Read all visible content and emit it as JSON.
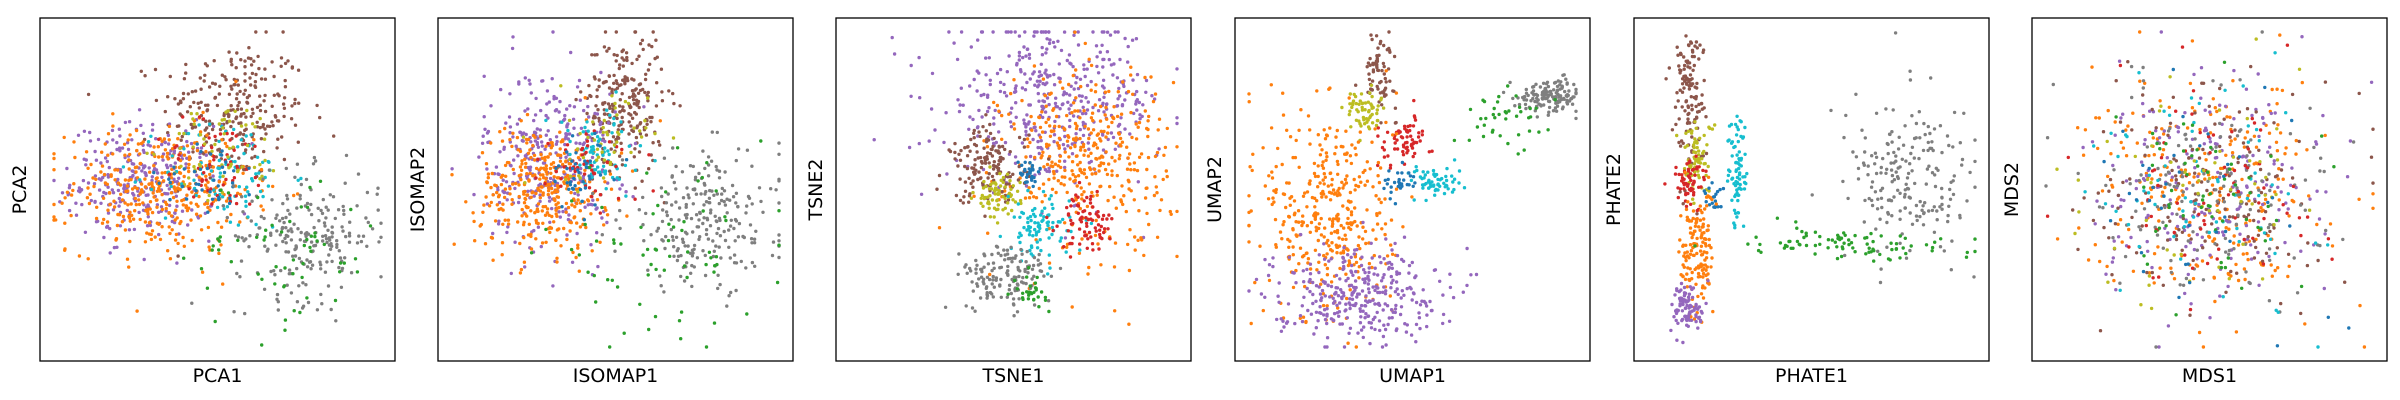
{
  "chart_data": [
    {
      "type": "scatter",
      "xlabel": "PCA1",
      "ylabel": "PCA2",
      "xlim": [
        -1,
        1
      ],
      "ylim": [
        -1,
        1
      ],
      "ticks": "none",
      "grid": false,
      "legend": "none",
      "groups": [
        {
          "color": "#8c564b",
          "center": [
            0.1,
            0.5
          ],
          "spread": [
            0.22,
            0.22
          ],
          "n": 260
        },
        {
          "color": "#9467bd",
          "center": [
            -0.45,
            0.05
          ],
          "spread": [
            0.22,
            0.18
          ],
          "n": 300
        },
        {
          "color": "#ff7f0e",
          "center": [
            -0.35,
            0.0
          ],
          "spread": [
            0.28,
            0.2
          ],
          "n": 360
        },
        {
          "color": "#17becf",
          "center": [
            0.05,
            0.1
          ],
          "spread": [
            0.2,
            0.18
          ],
          "n": 90
        },
        {
          "color": "#d62728",
          "center": [
            0.0,
            0.15
          ],
          "spread": [
            0.18,
            0.15
          ],
          "n": 60
        },
        {
          "color": "#bcbd22",
          "center": [
            0.05,
            0.25
          ],
          "spread": [
            0.18,
            0.15
          ],
          "n": 60
        },
        {
          "color": "#1f77b4",
          "center": [
            -0.05,
            0.1
          ],
          "spread": [
            0.15,
            0.12
          ],
          "n": 40
        },
        {
          "color": "#7f7f7f",
          "center": [
            0.55,
            -0.3
          ],
          "spread": [
            0.22,
            0.2
          ],
          "n": 220
        },
        {
          "color": "#2ca02c",
          "center": [
            0.4,
            -0.4
          ],
          "spread": [
            0.3,
            0.25
          ],
          "n": 60
        }
      ]
    },
    {
      "type": "scatter",
      "xlabel": "ISOMAP1",
      "ylabel": "ISOMAP2",
      "xlim": [
        -1,
        1
      ],
      "ylim": [
        -1,
        1
      ],
      "ticks": "none",
      "grid": false,
      "legend": "none",
      "groups": [
        {
          "color": "#8c564b",
          "center": [
            0.05,
            0.55
          ],
          "spread": [
            0.12,
            0.22
          ],
          "n": 230
        },
        {
          "color": "#9467bd",
          "center": [
            -0.4,
            0.2
          ],
          "spread": [
            0.2,
            0.28
          ],
          "n": 330
        },
        {
          "color": "#ff7f0e",
          "center": [
            -0.45,
            0.0
          ],
          "spread": [
            0.2,
            0.2
          ],
          "n": 330
        },
        {
          "color": "#17becf",
          "center": [
            -0.1,
            0.2
          ],
          "spread": [
            0.15,
            0.15
          ],
          "n": 70
        },
        {
          "color": "#d62728",
          "center": [
            -0.15,
            0.15
          ],
          "spread": [
            0.15,
            0.12
          ],
          "n": 50
        },
        {
          "color": "#bcbd22",
          "center": [
            -0.1,
            0.3
          ],
          "spread": [
            0.15,
            0.15
          ],
          "n": 50
        },
        {
          "color": "#1f77b4",
          "center": [
            -0.2,
            0.1
          ],
          "spread": [
            0.12,
            0.12
          ],
          "n": 40
        },
        {
          "color": "#7f7f7f",
          "center": [
            0.55,
            -0.2
          ],
          "spread": [
            0.25,
            0.22
          ],
          "n": 240
        },
        {
          "color": "#2ca02c",
          "center": [
            0.25,
            -0.4
          ],
          "spread": [
            0.35,
            0.25
          ],
          "n": 70
        }
      ]
    },
    {
      "type": "scatter",
      "xlabel": "TSNE1",
      "ylabel": "TSNE2",
      "xlim": [
        -1,
        1
      ],
      "ylim": [
        -1,
        1
      ],
      "ticks": "none",
      "grid": false,
      "legend": "none",
      "groups": [
        {
          "color": "#9467bd",
          "center": [
            0.25,
            0.55
          ],
          "spread": [
            0.33,
            0.25
          ],
          "n": 420
        },
        {
          "color": "#ff7f0e",
          "center": [
            0.45,
            0.2
          ],
          "spread": [
            0.25,
            0.3
          ],
          "n": 380
        },
        {
          "color": "#8c564b",
          "center": [
            -0.15,
            0.15
          ],
          "spread": [
            0.12,
            0.12
          ],
          "n": 150
        },
        {
          "color": "#bcbd22",
          "center": [
            -0.1,
            -0.05
          ],
          "spread": [
            0.07,
            0.07
          ],
          "n": 70
        },
        {
          "color": "#17becf",
          "center": [
            0.15,
            -0.25
          ],
          "spread": [
            0.1,
            0.1
          ],
          "n": 90
        },
        {
          "color": "#d62728",
          "center": [
            0.45,
            -0.2
          ],
          "spread": [
            0.08,
            0.09
          ],
          "n": 80
        },
        {
          "color": "#1f77b4",
          "center": [
            0.1,
            0.1
          ],
          "spread": [
            0.04,
            0.05
          ],
          "n": 30
        },
        {
          "color": "#7f7f7f",
          "center": [
            -0.05,
            -0.55
          ],
          "spread": [
            0.14,
            0.1
          ],
          "n": 140
        },
        {
          "color": "#2ca02c",
          "center": [
            0.1,
            -0.65
          ],
          "spread": [
            0.05,
            0.05
          ],
          "n": 30
        }
      ]
    },
    {
      "type": "scatter",
      "xlabel": "UMAP1",
      "ylabel": "UMAP2",
      "xlim": [
        -1,
        1
      ],
      "ylim": [
        -1,
        1
      ],
      "ticks": "none",
      "grid": false,
      "legend": "none",
      "groups": [
        {
          "color": "#7f7f7f",
          "center": [
            0.85,
            0.6
          ],
          "spread": [
            0.1,
            0.05
          ],
          "n": 140
        },
        {
          "color": "#2ca02c",
          "center": [
            0.55,
            0.45
          ],
          "spread": [
            0.15,
            0.08
          ],
          "n": 40
        },
        {
          "color": "#8c564b",
          "center": [
            -0.2,
            0.75
          ],
          "spread": [
            0.05,
            0.12
          ],
          "n": 70
        },
        {
          "color": "#bcbd22",
          "center": [
            -0.3,
            0.5
          ],
          "spread": [
            0.05,
            0.07
          ],
          "n": 60
        },
        {
          "color": "#d62728",
          "center": [
            -0.05,
            0.3
          ],
          "spread": [
            0.08,
            0.08
          ],
          "n": 70
        },
        {
          "color": "#17becf",
          "center": [
            0.15,
            0.05
          ],
          "spread": [
            0.08,
            0.05
          ],
          "n": 60
        },
        {
          "color": "#1f77b4",
          "center": [
            -0.1,
            0.05
          ],
          "spread": [
            0.05,
            0.05
          ],
          "n": 30
        },
        {
          "color": "#ff7f0e",
          "center": [
            -0.5,
            -0.15
          ],
          "spread": [
            0.2,
            0.35
          ],
          "n": 380
        },
        {
          "color": "#9467bd",
          "center": [
            -0.35,
            -0.65
          ],
          "spread": [
            0.25,
            0.15
          ],
          "n": 330
        }
      ]
    },
    {
      "type": "scatter",
      "xlabel": "PHATE1",
      "ylabel": "PHATE2",
      "xlim": [
        -1,
        1
      ],
      "ylim": [
        -1,
        1
      ],
      "ticks": "none",
      "grid": false,
      "legend": "none",
      "groups": [
        {
          "color": "#8c564b",
          "center": [
            -0.75,
            0.6
          ],
          "spread": [
            0.05,
            0.22
          ],
          "n": 130
        },
        {
          "color": "#bcbd22",
          "center": [
            -0.7,
            0.2
          ],
          "spread": [
            0.05,
            0.12
          ],
          "n": 70
        },
        {
          "color": "#d62728",
          "center": [
            -0.75,
            0.05
          ],
          "spread": [
            0.05,
            0.08
          ],
          "n": 60
        },
        {
          "color": "#17becf",
          "center": [
            -0.45,
            0.1
          ],
          "spread": [
            0.03,
            0.18
          ],
          "n": 80
        },
        {
          "color": "#1f77b4",
          "center": [
            -0.6,
            -0.05
          ],
          "spread": [
            0.03,
            0.05
          ],
          "n": 20
        },
        {
          "color": "#ff7f0e",
          "center": [
            -0.7,
            -0.4
          ],
          "spread": [
            0.05,
            0.2
          ],
          "n": 150
        },
        {
          "color": "#9467bd",
          "center": [
            -0.75,
            -0.75
          ],
          "spread": [
            0.05,
            0.08
          ],
          "n": 90
        },
        {
          "color": "#7f7f7f",
          "center": [
            0.6,
            0.05
          ],
          "spread": [
            0.2,
            0.25
          ],
          "n": 200
        },
        {
          "color": "#2ca02c",
          "center": [
            0.2,
            -0.35
          ],
          "spread": [
            0.35,
            0.05
          ],
          "n": 90
        }
      ]
    },
    {
      "type": "scatter",
      "xlabel": "MDS1",
      "ylabel": "MDS2",
      "xlim": [
        -1,
        1
      ],
      "ylim": [
        -1,
        1
      ],
      "ticks": "none",
      "grid": false,
      "legend": "none",
      "groups": [
        {
          "color": "#ff7f0e",
          "center": [
            0.0,
            0.0
          ],
          "spread": [
            0.35,
            0.35
          ],
          "n": 260
        },
        {
          "color": "#9467bd",
          "center": [
            0.0,
            0.0
          ],
          "spread": [
            0.35,
            0.35
          ],
          "n": 220
        },
        {
          "color": "#8c564b",
          "center": [
            0.0,
            0.0
          ],
          "spread": [
            0.35,
            0.35
          ],
          "n": 160
        },
        {
          "color": "#7f7f7f",
          "center": [
            0.0,
            0.0
          ],
          "spread": [
            0.35,
            0.35
          ],
          "n": 150
        },
        {
          "color": "#d62728",
          "center": [
            0.0,
            0.0
          ],
          "spread": [
            0.35,
            0.35
          ],
          "n": 70
        },
        {
          "color": "#17becf",
          "center": [
            0.0,
            0.0
          ],
          "spread": [
            0.35,
            0.35
          ],
          "n": 70
        },
        {
          "color": "#bcbd22",
          "center": [
            0.0,
            0.0
          ],
          "spread": [
            0.35,
            0.35
          ],
          "n": 60
        },
        {
          "color": "#2ca02c",
          "center": [
            0.0,
            0.0
          ],
          "spread": [
            0.35,
            0.35
          ],
          "n": 60
        },
        {
          "color": "#1f77b4",
          "center": [
            0.0,
            0.0
          ],
          "spread": [
            0.35,
            0.35
          ],
          "n": 40
        }
      ]
    }
  ]
}
